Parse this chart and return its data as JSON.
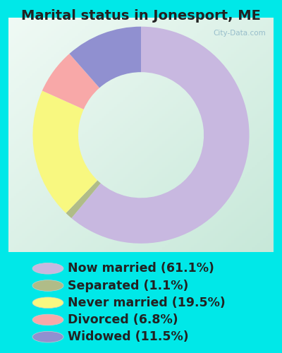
{
  "title": "Marital status in Jonesport, ME",
  "slices": [
    61.1,
    1.1,
    19.5,
    6.8,
    11.5
  ],
  "labels": [
    "Now married (61.1%)",
    "Separated (1.1%)",
    "Never married (19.5%)",
    "Divorced (6.8%)",
    "Widowed (11.5%)"
  ],
  "colors": [
    "#c8b8e0",
    "#b0bc88",
    "#f8f880",
    "#f8a8a8",
    "#9090d0"
  ],
  "bg_cyan": "#00e8e8",
  "chart_bg_color": "#e0f0e8",
  "title_fontsize": 14,
  "title_color": "#222222",
  "legend_fontsize": 12.5,
  "legend_color": "#222222",
  "watermark": "City-Data.com",
  "donut_width": 0.42
}
